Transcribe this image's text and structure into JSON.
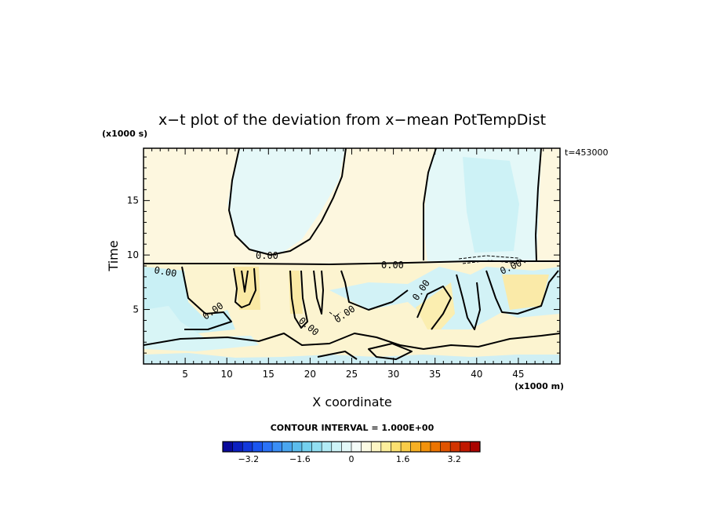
{
  "chart_data": {
    "type": "heatmap",
    "title": "x−t plot of the deviation from x−mean PotTempDist",
    "xlabel": "X coordinate",
    "ylabel": "Time",
    "x_unit": "(x1000 m)",
    "y_unit": "(x1000 s)",
    "time_label": "t=453000",
    "xlim": [
      0,
      50
    ],
    "ylim": [
      0,
      19.8
    ],
    "x_ticks": [
      5,
      10,
      15,
      20,
      25,
      30,
      35,
      40,
      45
    ],
    "y_ticks": [
      5,
      10,
      15
    ],
    "contour_interval_text": "CONTOUR INTERVAL = 1.000E+00",
    "contour_level_label": "0.00",
    "colorbar": {
      "range": [
        -4,
        4
      ],
      "tick_values": [
        -3.2,
        -1.6,
        0,
        1.6,
        3.2
      ],
      "tick_labels": [
        "−3.2",
        "−1.6",
        "0",
        "1.6",
        "3.2"
      ],
      "colors": [
        "#0a0a9a",
        "#0c1fc0",
        "#1238dc",
        "#1a55f0",
        "#2a72f8",
        "#3a8ef6",
        "#4aa6f0",
        "#5cbcec",
        "#74d0ee",
        "#92dff2",
        "#b2ebf5",
        "#cdf3f7",
        "#e4f9f9",
        "#f4fcf8",
        "#fcfbe4",
        "#fdf6c4",
        "#fcee9c",
        "#fbe070",
        "#f9cc48",
        "#f6b024",
        "#f2920c",
        "#ec7400",
        "#e05400",
        "#d23400",
        "#c01800",
        "#aa0400"
      ]
    },
    "grid": false
  }
}
